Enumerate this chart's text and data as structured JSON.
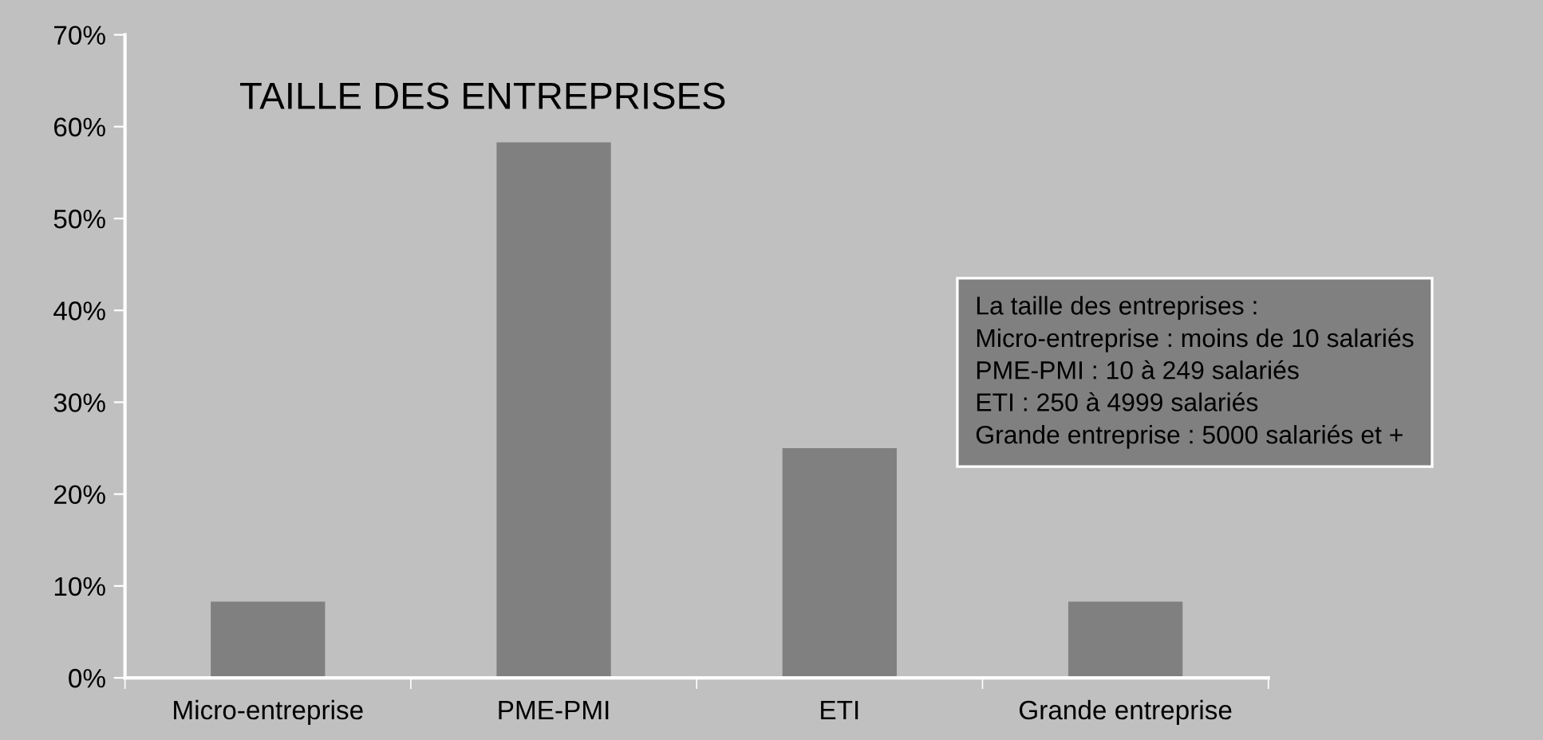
{
  "chart_data": {
    "type": "bar",
    "title": "TAILLE DES ENTREPRISES",
    "categories": [
      "Micro-entreprise",
      "PME-PMI",
      "ETI",
      "Grande entreprise"
    ],
    "values": [
      8.3,
      58.3,
      25,
      8.3
    ],
    "color": "#808080",
    "ylim": [
      0,
      70
    ],
    "yticks": [
      {
        "value": 0,
        "label": "0%"
      },
      {
        "value": 10,
        "label": "10%"
      },
      {
        "value": 20,
        "label": "20%"
      },
      {
        "value": 30,
        "label": "30%"
      },
      {
        "value": 40,
        "label": "40%"
      },
      {
        "value": 50,
        "label": "50%"
      },
      {
        "value": 60,
        "label": "60%"
      },
      {
        "value": 70,
        "label": "70%"
      }
    ],
    "grid": false,
    "legend": false,
    "annotations": [
      "La taille des entreprises :\nMicro-entreprise : moins de 10 salariés\nPME-PMI : 10 à 249 salariés\nETI : 250 à 4999 salariés\nGrande entreprise : 5000 salariés et +"
    ]
  }
}
